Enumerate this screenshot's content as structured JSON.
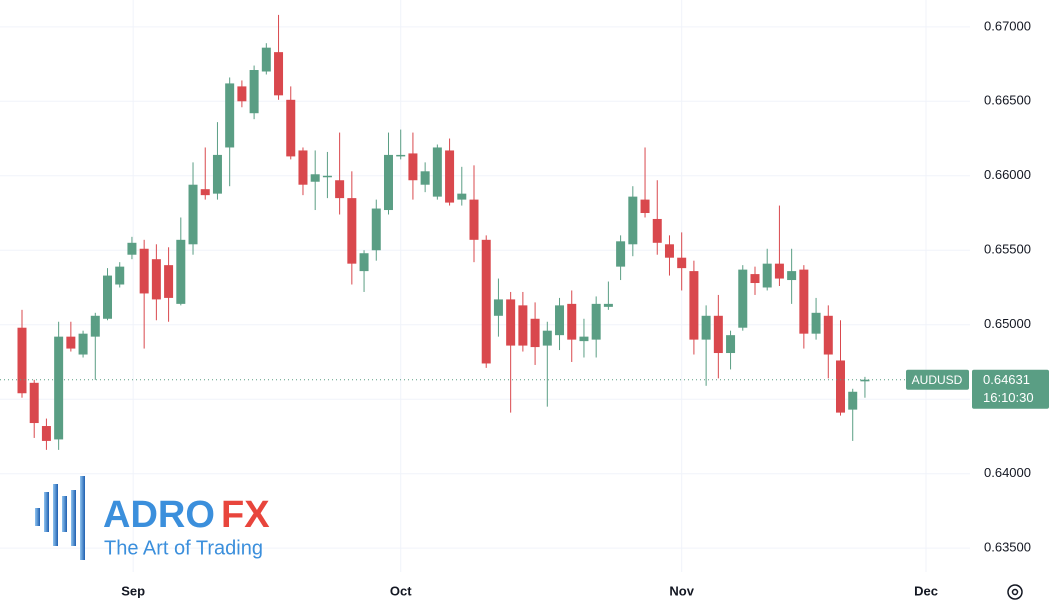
{
  "chart_data": {
    "type": "candlestick",
    "x": [
      0,
      1,
      2,
      3,
      4,
      5,
      6,
      7,
      8,
      9,
      10,
      11,
      12,
      13,
      14,
      15,
      16,
      17,
      18,
      19,
      20,
      21,
      22,
      23,
      24,
      25,
      26,
      27,
      28,
      29,
      30,
      31,
      32,
      33,
      34,
      35,
      36,
      37,
      38,
      39,
      40,
      41,
      42,
      43,
      44,
      45,
      46,
      47,
      48,
      49,
      50,
      51,
      52,
      53,
      54,
      55,
      56,
      57,
      58,
      59,
      60,
      61,
      62,
      63,
      64,
      65,
      66,
      67,
      68,
      69
    ],
    "series": [
      {
        "name": "AUDUSD",
        "up_color": "#5a9e84",
        "down_color": "#d9484d",
        "open": [
          0.6498,
          0.6461,
          0.6432,
          0.6423,
          0.6492,
          0.648,
          0.6492,
          0.6504,
          0.6527,
          0.6547,
          0.6551,
          0.6544,
          0.654,
          0.6514,
          0.6554,
          0.6591,
          0.6588,
          0.6619,
          0.666,
          0.6642,
          0.667,
          0.6683,
          0.6651,
          0.6617,
          0.6596,
          0.6599,
          0.6597,
          0.6585,
          0.6536,
          0.655,
          0.6577,
          0.6613,
          0.6615,
          0.6594,
          0.6586,
          0.6617,
          0.6584,
          0.6584,
          0.6557,
          0.6506,
          0.6517,
          0.6513,
          0.6504,
          0.6486,
          0.6493,
          0.6514,
          0.6489,
          0.649,
          0.6512,
          0.6539,
          0.6554,
          0.6584,
          0.6571,
          0.6554,
          0.6545,
          0.6536,
          0.649,
          0.6506,
          0.6481,
          0.6498,
          0.6534,
          0.6525,
          0.6541,
          0.653,
          0.6537,
          0.6494,
          0.6506,
          0.6476,
          0.6443,
          0.6462
        ],
        "high": [
          0.651,
          0.6463,
          0.6437,
          0.6502,
          0.6502,
          0.6496,
          0.6508,
          0.6538,
          0.6542,
          0.6559,
          0.6557,
          0.6554,
          0.6552,
          0.6572,
          0.6609,
          0.6619,
          0.6636,
          0.6666,
          0.6664,
          0.6674,
          0.6689,
          0.6708,
          0.666,
          0.6619,
          0.6617,
          0.6616,
          0.6629,
          0.6603,
          0.655,
          0.6584,
          0.6629,
          0.6631,
          0.6629,
          0.6609,
          0.6621,
          0.6625,
          0.6606,
          0.6607,
          0.656,
          0.6531,
          0.6522,
          0.6522,
          0.6515,
          0.6502,
          0.6518,
          0.6523,
          0.6504,
          0.6519,
          0.6529,
          0.656,
          0.6593,
          0.6619,
          0.6597,
          0.656,
          0.6562,
          0.6543,
          0.6513,
          0.652,
          0.6496,
          0.654,
          0.6539,
          0.6551,
          0.658,
          0.6551,
          0.654,
          0.6518,
          0.6513,
          0.6503,
          0.6457,
          0.6465
        ],
        "low": [
          0.6451,
          0.6424,
          0.6416,
          0.6416,
          0.6482,
          0.6478,
          0.6463,
          0.6503,
          0.6525,
          0.6544,
          0.6484,
          0.6503,
          0.6502,
          0.6513,
          0.6547,
          0.6584,
          0.6584,
          0.6593,
          0.6646,
          0.6638,
          0.6668,
          0.6651,
          0.6611,
          0.6587,
          0.6577,
          0.6585,
          0.6574,
          0.6527,
          0.6522,
          0.6543,
          0.6574,
          0.6611,
          0.6584,
          0.6589,
          0.6584,
          0.658,
          0.658,
          0.6542,
          0.6471,
          0.6492,
          0.6441,
          0.6482,
          0.6473,
          0.6445,
          0.6483,
          0.6475,
          0.6478,
          0.6478,
          0.651,
          0.653,
          0.6546,
          0.6572,
          0.6547,
          0.6533,
          0.6523,
          0.648,
          0.6459,
          0.6464,
          0.647,
          0.6496,
          0.652,
          0.6523,
          0.6526,
          0.6514,
          0.6484,
          0.649,
          0.6464,
          0.6439,
          0.6422,
          0.6451
        ],
        "close": [
          0.6454,
          0.6434,
          0.6422,
          0.6492,
          0.6484,
          0.6494,
          0.6506,
          0.6533,
          0.6539,
          0.6555,
          0.6521,
          0.6517,
          0.6518,
          0.6557,
          0.6594,
          0.6587,
          0.6614,
          0.6662,
          0.665,
          0.6671,
          0.6686,
          0.6654,
          0.6613,
          0.6594,
          0.6601,
          0.66,
          0.6585,
          0.6541,
          0.6548,
          0.6578,
          0.6614,
          0.6614,
          0.6597,
          0.6603,
          0.6619,
          0.6582,
          0.6588,
          0.6557,
          0.6474,
          0.6517,
          0.6486,
          0.6486,
          0.6485,
          0.6496,
          0.6513,
          0.649,
          0.6492,
          0.6514,
          0.6514,
          0.6556,
          0.6586,
          0.6575,
          0.6555,
          0.6545,
          0.6538,
          0.649,
          0.6506,
          0.6481,
          0.6493,
          0.6537,
          0.6528,
          0.6541,
          0.6531,
          0.6536,
          0.6494,
          0.6508,
          0.648,
          0.6441,
          0.6455,
          0.64631
        ]
      }
    ],
    "countdown": "16:10:30",
    "xlim": [
      -1.8,
      77.6
    ],
    "xticks": [
      {
        "value": 9.1,
        "label": "Sep"
      },
      {
        "value": 31.0,
        "label": "Oct"
      },
      {
        "value": 54.0,
        "label": "Nov"
      },
      {
        "value": 74.0,
        "label": "Dec"
      }
    ],
    "ylim": [
      0.6334,
      0.6718
    ],
    "yticks": [
      {
        "value": 0.635,
        "label": "0.63500"
      },
      {
        "value": 0.64,
        "label": "0.64000"
      },
      {
        "value": 0.645,
        "label": "0.64500"
      },
      {
        "value": 0.65,
        "label": "0.65000"
      },
      {
        "value": 0.655,
        "label": "0.65500"
      },
      {
        "value": 0.66,
        "label": "0.66000"
      },
      {
        "value": 0.665,
        "label": "0.66500"
      },
      {
        "value": 0.67,
        "label": "0.67000"
      }
    ],
    "grid": true,
    "watermark_name": "ADRO",
    "watermark_suffix": "FX",
    "watermark_tagline": "The Art of Trading"
  }
}
